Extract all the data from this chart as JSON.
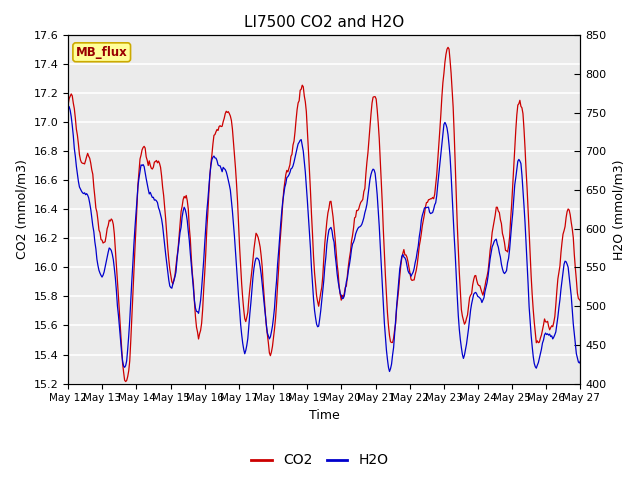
{
  "title": "LI7500 CO2 and H2O",
  "xlabel": "Time",
  "ylabel_left": "CO2 (mmol/m3)",
  "ylabel_right": "H2O (mmol/m3)",
  "co2_ylim": [
    15.2,
    17.6
  ],
  "h2o_ylim": [
    400,
    850
  ],
  "co2_yticks": [
    15.2,
    15.4,
    15.6,
    15.8,
    16.0,
    16.2,
    16.4,
    16.6,
    16.8,
    17.0,
    17.2,
    17.4,
    17.6
  ],
  "h2o_yticks": [
    400,
    450,
    500,
    550,
    600,
    650,
    700,
    750,
    800,
    850
  ],
  "xtick_labels": [
    "May 12",
    "May 13",
    "May 14",
    "May 15",
    "May 16",
    "May 17",
    "May 18",
    "May 19",
    "May 20",
    "May 21",
    "May 22",
    "May 23",
    "May 24",
    "May 25",
    "May 26",
    "May 27"
  ],
  "co2_color": "#CC0000",
  "h2o_color": "#0000CC",
  "plot_bg_color": "#EBEBEB",
  "annotation_text": "MB_flux",
  "annotation_bg": "#FFFF99",
  "annotation_border": "#CCAA00",
  "legend_co2": "CO2",
  "legend_h2o": "H2O",
  "seed": 42,
  "n_points": 500
}
